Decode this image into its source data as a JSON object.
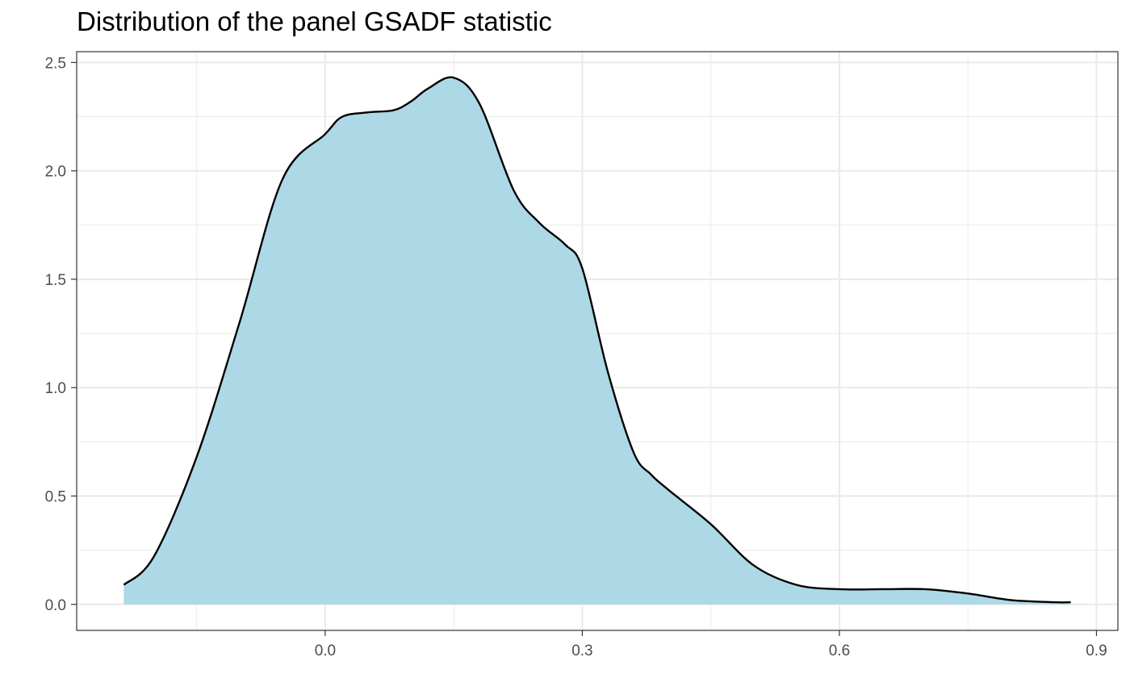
{
  "chart_data": {
    "type": "area",
    "title": "Distribution of the panel GSADF statistic",
    "xlabel": "",
    "ylabel": "",
    "xlim": [
      -0.29,
      0.925
    ],
    "ylim": [
      -0.12,
      2.55
    ],
    "x_ticks": [
      0.0,
      0.3,
      0.6,
      0.9
    ],
    "x_tick_labels": [
      "0.0",
      "0.3",
      "0.6",
      "0.9"
    ],
    "y_ticks": [
      0.0,
      0.5,
      1.0,
      1.5,
      2.0,
      2.5
    ],
    "y_tick_labels": [
      "0.0",
      "0.5",
      "1.0",
      "1.5",
      "2.0",
      "2.5"
    ],
    "x_minor_ticks": [
      -0.15,
      0.15,
      0.45,
      0.75
    ],
    "y_minor_ticks": [
      0.25,
      0.75,
      1.25,
      1.75,
      2.25
    ],
    "grid": true,
    "fill_color": "#add8e6",
    "line_color": "#000000",
    "series": [
      {
        "x": [
          -0.235,
          -0.2,
          -0.15,
          -0.1,
          -0.05,
          0.0,
          0.02,
          0.05,
          0.08,
          0.1,
          0.12,
          0.15,
          0.18,
          0.22,
          0.25,
          0.28,
          0.3,
          0.33,
          0.36,
          0.38,
          0.4,
          0.45,
          0.5,
          0.55,
          0.6,
          0.65,
          0.7,
          0.75,
          0.8,
          0.85,
          0.87
        ],
        "y": [
          0.09,
          0.22,
          0.68,
          1.3,
          1.96,
          2.17,
          2.25,
          2.27,
          2.28,
          2.32,
          2.38,
          2.43,
          2.31,
          1.91,
          1.76,
          1.66,
          1.55,
          1.07,
          0.7,
          0.6,
          0.53,
          0.37,
          0.18,
          0.09,
          0.07,
          0.07,
          0.07,
          0.05,
          0.02,
          0.01,
          0.01
        ]
      }
    ]
  }
}
